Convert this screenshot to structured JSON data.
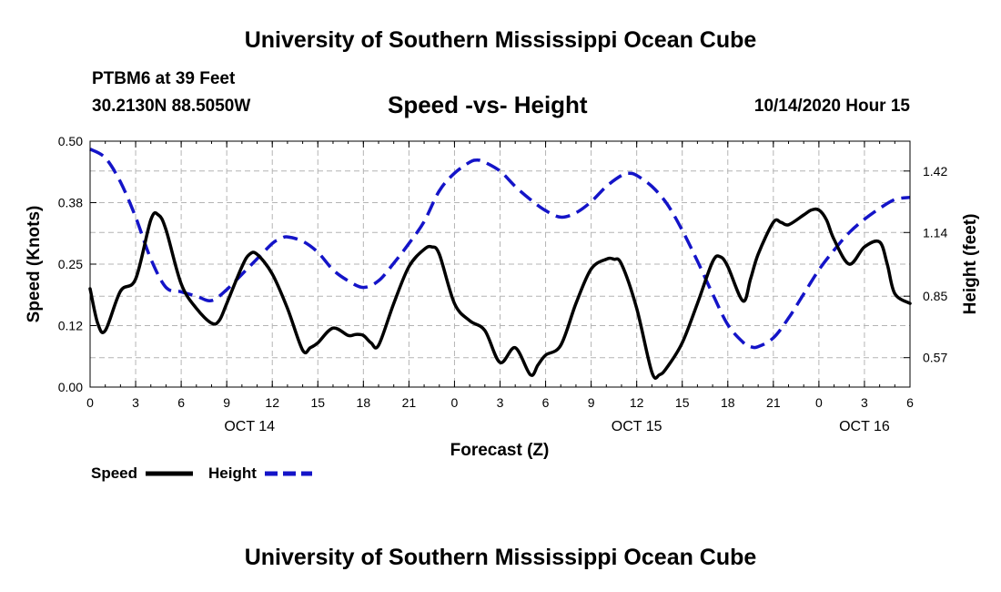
{
  "header": {
    "title": "University of Southern Mississippi Ocean Cube",
    "station": "PTBM6 at 39 Feet",
    "coords": "30.2130N 88.5050W",
    "subtitle": "Speed -vs- Height",
    "datestamp": "10/14/2020 Hour 15"
  },
  "footer": {
    "title": "University of Southern Mississippi Ocean Cube"
  },
  "colors": {
    "speed": "#000000",
    "height": "#1414c8",
    "grid": "#b4b4b4"
  },
  "chart_data": {
    "type": "line",
    "xlabel": "Forecast (Z)",
    "ylabel_left": "Speed (Knots)",
    "ylabel_right": "Height (feet)",
    "x_unit": "hours since 10/14/2020 00Z",
    "xlim": [
      0,
      54
    ],
    "x_ticks": [
      0,
      3,
      6,
      9,
      12,
      15,
      18,
      21,
      24,
      27,
      30,
      33,
      36,
      39,
      42,
      45,
      48,
      51,
      54
    ],
    "x_tick_labels": [
      "0",
      "3",
      "6",
      "9",
      "12",
      "15",
      "18",
      "21",
      "0",
      "3",
      "6",
      "9",
      "12",
      "15",
      "18",
      "21",
      "0",
      "3",
      "6"
    ],
    "day_labels": [
      {
        "x": 10.5,
        "label": "OCT 14"
      },
      {
        "x": 36,
        "label": "OCT 15"
      },
      {
        "x": 51,
        "label": "OCT 16"
      }
    ],
    "ylim_left": [
      0,
      0.5
    ],
    "y_ticks_left": [
      0.0,
      0.125,
      0.25,
      0.375,
      0.5
    ],
    "y_tick_labels_left": [
      "0.00",
      "0.12",
      "0.25",
      "0.38",
      "0.50"
    ],
    "ylim_right": [
      0.436,
      1.556
    ],
    "y_ticks_right": [
      0.57,
      0.85,
      1.14,
      1.42
    ],
    "y_tick_labels_right": [
      "0.57",
      "0.85",
      "1.14",
      "1.42"
    ],
    "legend": [
      {
        "name": "Speed",
        "style": "solid"
      },
      {
        "name": "Height",
        "style": "dashed"
      }
    ],
    "series": [
      {
        "name": "Speed",
        "axis": "left",
        "style": "solid",
        "x": [
          0,
          0.5,
          1,
          2,
          3,
          4,
          4.5,
          5,
          6,
          7,
          8,
          8.5,
          9,
          10,
          10.5,
          11,
          12,
          13,
          14,
          14.5,
          15,
          16,
          17,
          17.5,
          18,
          18.5,
          19,
          20,
          21,
          22,
          22.5,
          23,
          24,
          25,
          26,
          27,
          28,
          29,
          29.5,
          30,
          31,
          32,
          33,
          34,
          34.5,
          35,
          36,
          37,
          37.5,
          38,
          39,
          40,
          41,
          41.5,
          42,
          43,
          43.5,
          44,
          45,
          45.5,
          46,
          47,
          47.5,
          48,
          48.5,
          49,
          50,
          51,
          52,
          52.5,
          53,
          54
        ],
        "y": [
          0.2,
          0.13,
          0.115,
          0.195,
          0.22,
          0.34,
          0.35,
          0.32,
          0.21,
          0.16,
          0.13,
          0.135,
          0.17,
          0.245,
          0.27,
          0.27,
          0.23,
          0.16,
          0.075,
          0.08,
          0.09,
          0.12,
          0.105,
          0.107,
          0.105,
          0.09,
          0.085,
          0.17,
          0.245,
          0.28,
          0.285,
          0.27,
          0.17,
          0.135,
          0.115,
          0.05,
          0.08,
          0.025,
          0.045,
          0.065,
          0.085,
          0.17,
          0.24,
          0.26,
          0.26,
          0.25,
          0.16,
          0.03,
          0.025,
          0.04,
          0.09,
          0.17,
          0.255,
          0.265,
          0.245,
          0.175,
          0.22,
          0.27,
          0.335,
          0.335,
          0.33,
          0.35,
          0.36,
          0.36,
          0.34,
          0.3,
          0.25,
          0.285,
          0.295,
          0.25,
          0.19,
          0.17
        ]
      },
      {
        "name": "Height",
        "axis": "right",
        "style": "dashed",
        "x": [
          0,
          1,
          2,
          3,
          4,
          5,
          6,
          7,
          8,
          9,
          10,
          11,
          12,
          12.5,
          13,
          14,
          15,
          16,
          17,
          18,
          19,
          20,
          21,
          22,
          23,
          24,
          25,
          25.5,
          26,
          27,
          28,
          29,
          30,
          31,
          32,
          33,
          34,
          35,
          35.5,
          36,
          37,
          38,
          39,
          40,
          41,
          42,
          43,
          43.5,
          44,
          45,
          46,
          47,
          48,
          49,
          50,
          51,
          52,
          53,
          54
        ],
        "y": [
          1.52,
          1.48,
          1.37,
          1.21,
          1.02,
          0.89,
          0.87,
          0.85,
          0.83,
          0.88,
          0.95,
          1.02,
          1.09,
          1.11,
          1.12,
          1.1,
          1.05,
          0.97,
          0.92,
          0.89,
          0.92,
          1.0,
          1.09,
          1.19,
          1.33,
          1.41,
          1.46,
          1.47,
          1.46,
          1.42,
          1.35,
          1.29,
          1.24,
          1.21,
          1.23,
          1.28,
          1.35,
          1.4,
          1.41,
          1.4,
          1.35,
          1.27,
          1.15,
          1.01,
          0.86,
          0.72,
          0.64,
          0.62,
          0.62,
          0.66,
          0.75,
          0.86,
          0.97,
          1.06,
          1.14,
          1.2,
          1.25,
          1.29,
          1.3
        ]
      }
    ]
  }
}
